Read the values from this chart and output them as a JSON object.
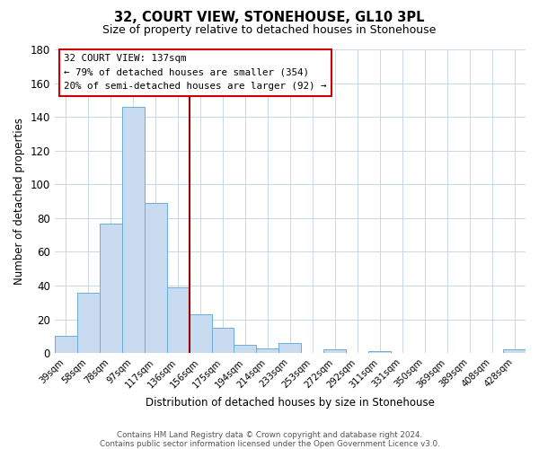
{
  "title": "32, COURT VIEW, STONEHOUSE, GL10 3PL",
  "subtitle": "Size of property relative to detached houses in Stonehouse",
  "xlabel": "Distribution of detached houses by size in Stonehouse",
  "ylabel": "Number of detached properties",
  "bar_labels": [
    "39sqm",
    "58sqm",
    "78sqm",
    "97sqm",
    "117sqm",
    "136sqm",
    "156sqm",
    "175sqm",
    "194sqm",
    "214sqm",
    "233sqm",
    "253sqm",
    "272sqm",
    "292sqm",
    "311sqm",
    "331sqm",
    "350sqm",
    "369sqm",
    "389sqm",
    "408sqm",
    "428sqm"
  ],
  "bar_values": [
    10,
    36,
    77,
    146,
    89,
    39,
    23,
    15,
    5,
    3,
    6,
    0,
    2,
    0,
    1,
    0,
    0,
    0,
    0,
    0,
    2
  ],
  "bar_color": "#c8dbf0",
  "bar_edge_color": "#6aaed6",
  "ylim": [
    0,
    180
  ],
  "yticks": [
    0,
    20,
    40,
    60,
    80,
    100,
    120,
    140,
    160,
    180
  ],
  "annotation_title": "32 COURT VIEW: 137sqm",
  "annotation_line1": "← 79% of detached houses are smaller (354)",
  "annotation_line2": "20% of semi-detached houses are larger (92) →",
  "vline_color": "#990000",
  "annotation_box_edgecolor": "#cc0000",
  "footer1": "Contains HM Land Registry data © Crown copyright and database right 2024.",
  "footer2": "Contains public sector information licensed under the Open Government Licence v3.0.",
  "background_color": "#ffffff",
  "grid_color": "#c8d8ec"
}
